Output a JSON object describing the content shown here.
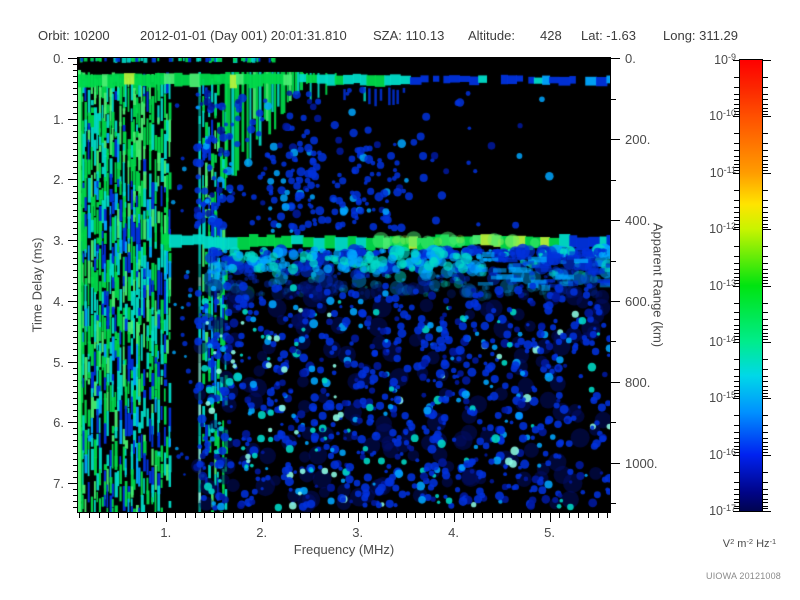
{
  "header": {
    "items": [
      "Orbit: 10200",
      "2012-01-01 (Day 001) 20:01:31.810",
      "SZA: 110.13",
      "Altitude:",
      "428",
      "Lat: -1.63",
      "Long: 311.29"
    ]
  },
  "watermark": "UIOWA 20121008",
  "chart_data": {
    "type": "heatmap",
    "subtype": "radar_sounder_ionogram_spectrogram",
    "xlabel": "Frequency (MHz)",
    "ylabel_left": "Time Delay (ms)",
    "ylabel_right": "Apparent Range (km)",
    "x_range_mhz": [
      0.085,
      5.63
    ],
    "y_range_ms": [
      0,
      7.48
    ],
    "x_ticks": [
      {
        "value": 1,
        "label": "1."
      },
      {
        "value": 2,
        "label": "2."
      },
      {
        "value": 3,
        "label": "3."
      },
      {
        "value": 4,
        "label": "4."
      },
      {
        "value": 5,
        "label": "5."
      }
    ],
    "x_minor_step_mhz": 0.1,
    "y_ticks_left": [
      {
        "value": 0,
        "label": "0."
      },
      {
        "value": 1,
        "label": "1."
      },
      {
        "value": 2,
        "label": "2."
      },
      {
        "value": 3,
        "label": "3."
      },
      {
        "value": 4,
        "label": "4."
      },
      {
        "value": 5,
        "label": "5."
      },
      {
        "value": 6,
        "label": "6."
      },
      {
        "value": 7,
        "label": "7."
      }
    ],
    "y_minor_step_ms": 0.1,
    "y_ticks_right": [
      {
        "value": 0,
        "label": "0."
      },
      {
        "value": 200,
        "label": "200."
      },
      {
        "value": 400,
        "label": "400."
      },
      {
        "value": 600,
        "label": "600."
      },
      {
        "value": 800,
        "label": "800."
      },
      {
        "value": 1000,
        "label": "1000."
      }
    ],
    "y_right_minor_step_km": 100,
    "km_per_ms": 149.9,
    "grid": false,
    "colorbar": {
      "scale": "log",
      "base": "10",
      "exponents": [
        "-9",
        "-10",
        "-11",
        "-12",
        "-13",
        "-14",
        "-15",
        "-16",
        "-17"
      ],
      "unit_parts": [
        {
          "base": "V",
          "sup": "2"
        },
        {
          "base": "m",
          "sup": "-2"
        },
        {
          "base": "Hz",
          "sup": "-1"
        }
      ],
      "gradient_stops": [
        {
          "pos": 0.0,
          "color": "#ff0000"
        },
        {
          "pos": 0.06,
          "color": "#fb2500"
        },
        {
          "pos": 0.125,
          "color": "#ff5000"
        },
        {
          "pos": 0.25,
          "color": "#ff9c00"
        },
        {
          "pos": 0.32,
          "color": "#ffe400"
        },
        {
          "pos": 0.375,
          "color": "#c8f400"
        },
        {
          "pos": 0.5,
          "color": "#00e410"
        },
        {
          "pos": 0.625,
          "color": "#00ec8c"
        },
        {
          "pos": 0.7,
          "color": "#00d8e8"
        },
        {
          "pos": 0.78,
          "color": "#0092ff"
        },
        {
          "pos": 0.875,
          "color": "#0022f0"
        },
        {
          "pos": 0.96,
          "color": "#000486"
        },
        {
          "pos": 1.0,
          "color": "#000450"
        }
      ]
    },
    "features": {
      "seed": 20121008,
      "background": "#000000",
      "palette": {
        "g1": "#00d94a",
        "g2": "#49ee71",
        "g3": "#b4f23c",
        "cy": "#00dcc8",
        "lc": "#8cfce4",
        "sk": "#00a6ff",
        "bl": "#0031dc",
        "db": "#0019a0",
        "nv": "#000d6e"
      },
      "transmit_band_ms": [
        0.26,
        0.46
      ],
      "transmit_band_zones_mhz": {
        "green_end": 2.25,
        "cyan_end": 3.5
      },
      "ionosphere_dense_mhz": [
        0.085,
        1.06
      ],
      "ionosphere_gap_mhz": [
        1.06,
        1.3
      ],
      "plasma_line_mhz": 1.35,
      "ionosphere_mid_mhz": [
        1.38,
        1.62
      ],
      "echo_dome_mhz": [
        1.62,
        2.42
      ],
      "echo_tail_mhz": [
        2.42,
        2.78
      ],
      "surface_band_ms": [
        2.9,
        3.15
      ],
      "surface_band_apparent_range_km": 450,
      "surface_band_strong_mhz": [
        3.0,
        5.08
      ],
      "speckle_region_ms": [
        3.3,
        7.48
      ],
      "speckle_region_mhz": [
        1.3,
        5.63
      ]
    }
  }
}
